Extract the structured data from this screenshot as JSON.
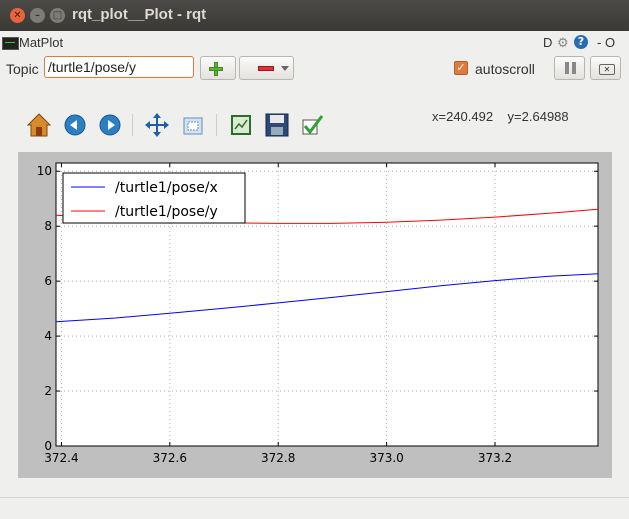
{
  "window": {
    "title": "rqt_plot__Plot - rqt"
  },
  "plugin": {
    "title": "MatPlot",
    "d_label": "D",
    "help_label": "?",
    "close_label": "- O"
  },
  "topic": {
    "label": "Topic",
    "value": "/turtle1/pose/y"
  },
  "autoscroll": {
    "label": "autoscroll",
    "checked": true
  },
  "toolbar": {
    "coord_x": "x=240.492",
    "coord_y": "y=2.64988",
    "icons": [
      "home-icon",
      "back-icon",
      "forward-icon",
      "pan-icon",
      "zoom-icon",
      "subplots-icon",
      "save-icon",
      "edit-icon"
    ]
  },
  "chart_data": {
    "type": "line",
    "xlim": [
      372.39,
      373.39
    ],
    "ylim": [
      0,
      10.3
    ],
    "xticks": [
      "372.4",
      "372.6",
      "372.8",
      "373.0",
      "373.2"
    ],
    "xtick_values": [
      372.4,
      372.6,
      372.8,
      373.0,
      373.2
    ],
    "yticks": [
      "0",
      "2",
      "4",
      "6",
      "8",
      "10"
    ],
    "ytick_values": [
      0,
      2,
      4,
      6,
      8,
      10
    ],
    "grid": true,
    "legend_position": "upper-left",
    "series": [
      {
        "name": "/turtle1/pose/x",
        "color": "#0000ff",
        "x": [
          372.39,
          372.5,
          372.6,
          372.7,
          372.8,
          372.9,
          373.0,
          373.1,
          373.2,
          373.3,
          373.39
        ],
        "y": [
          4.52,
          4.66,
          4.83,
          5.01,
          5.21,
          5.41,
          5.62,
          5.83,
          6.02,
          6.18,
          6.27
        ]
      },
      {
        "name": "/turtle1/pose/y",
        "color": "#ff0000",
        "x": [
          372.39,
          372.5,
          372.6,
          372.7,
          372.8,
          372.9,
          373.0,
          373.1,
          373.2,
          373.3,
          373.39
        ],
        "y": [
          8.4,
          8.27,
          8.18,
          8.12,
          8.1,
          8.1,
          8.14,
          8.22,
          8.33,
          8.47,
          8.62
        ]
      }
    ]
  }
}
